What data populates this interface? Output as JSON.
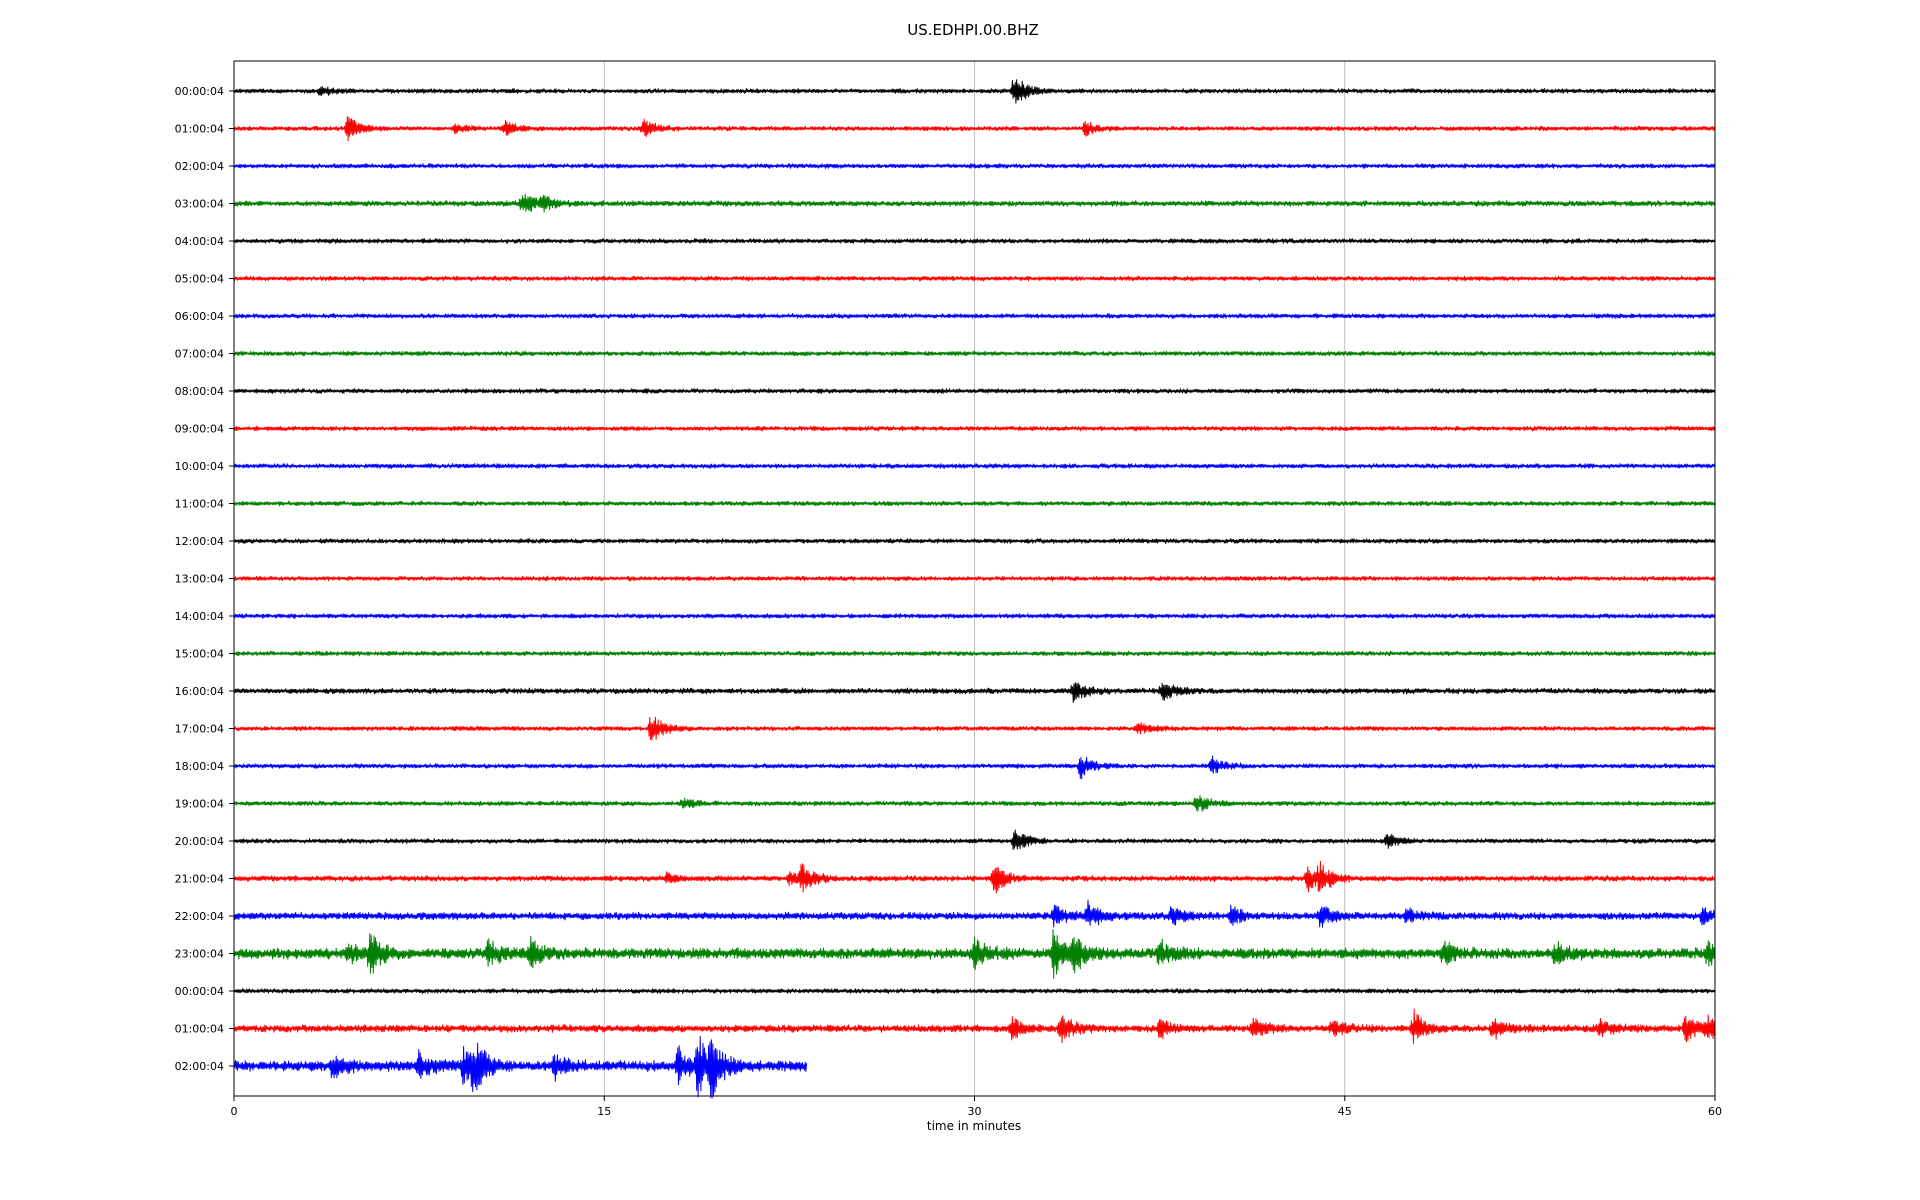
{
  "chart_data": {
    "type": "line",
    "title": "US.EDHPI.00.BHZ",
    "xlabel": "time in minutes",
    "ylabel": "",
    "xlim": [
      0,
      60
    ],
    "x_ticks": [
      "0",
      "15",
      "30",
      "45",
      "60"
    ],
    "x_tick_values": [
      0,
      15,
      30,
      45,
      60
    ],
    "grid": "vertical",
    "line_colors": [
      "#000000",
      "#ff0000",
      "#0000ff",
      "#008000"
    ],
    "series": [
      {
        "label": "00:00:04",
        "color": "#000000",
        "end": 60,
        "noise": 2.5,
        "events": [
          {
            "t": 3.5,
            "amp": 5
          },
          {
            "t": 31.6,
            "amp": 16
          }
        ]
      },
      {
        "label": "01:00:04",
        "color": "#ff0000",
        "end": 60,
        "noise": 2.5,
        "events": [
          {
            "t": 4.6,
            "amp": 12
          },
          {
            "t": 9.0,
            "amp": 4
          },
          {
            "t": 11.0,
            "amp": 7
          },
          {
            "t": 16.6,
            "amp": 9
          },
          {
            "t": 34.5,
            "amp": 7
          }
        ]
      },
      {
        "label": "02:00:04",
        "color": "#0000ff",
        "end": 60,
        "noise": 2.5,
        "events": []
      },
      {
        "label": "03:00:04",
        "color": "#008000",
        "end": 60,
        "noise": 3,
        "events": [
          {
            "t": 11.7,
            "amp": 12
          },
          {
            "t": 12.5,
            "amp": 6
          }
        ]
      },
      {
        "label": "04:00:04",
        "color": "#000000",
        "end": 60,
        "noise": 2.5,
        "events": []
      },
      {
        "label": "05:00:04",
        "color": "#ff0000",
        "end": 60,
        "noise": 2.5,
        "events": []
      },
      {
        "label": "06:00:04",
        "color": "#0000ff",
        "end": 60,
        "noise": 2.5,
        "events": []
      },
      {
        "label": "07:00:04",
        "color": "#008000",
        "end": 60,
        "noise": 2.5,
        "events": []
      },
      {
        "label": "08:00:04",
        "color": "#000000",
        "end": 60,
        "noise": 2.5,
        "events": []
      },
      {
        "label": "09:00:04",
        "color": "#ff0000",
        "end": 60,
        "noise": 2.5,
        "events": []
      },
      {
        "label": "10:00:04",
        "color": "#0000ff",
        "end": 60,
        "noise": 2.5,
        "events": []
      },
      {
        "label": "11:00:04",
        "color": "#008000",
        "end": 60,
        "noise": 2.5,
        "events": []
      },
      {
        "label": "12:00:04",
        "color": "#000000",
        "end": 60,
        "noise": 2.5,
        "events": []
      },
      {
        "label": "13:00:04",
        "color": "#ff0000",
        "end": 60,
        "noise": 2.5,
        "events": []
      },
      {
        "label": "14:00:04",
        "color": "#0000ff",
        "end": 60,
        "noise": 2.5,
        "events": []
      },
      {
        "label": "15:00:04",
        "color": "#008000",
        "end": 60,
        "noise": 2.5,
        "events": []
      },
      {
        "label": "16:00:04",
        "color": "#000000",
        "end": 60,
        "noise": 3,
        "events": [
          {
            "t": 34.0,
            "amp": 11
          },
          {
            "t": 37.6,
            "amp": 9
          }
        ]
      },
      {
        "label": "17:00:04",
        "color": "#ff0000",
        "end": 60,
        "noise": 2.5,
        "events": [
          {
            "t": 16.9,
            "amp": 15
          },
          {
            "t": 36.6,
            "amp": 6
          }
        ]
      },
      {
        "label": "18:00:04",
        "color": "#0000ff",
        "end": 60,
        "noise": 2.5,
        "events": [
          {
            "t": 34.3,
            "amp": 12
          },
          {
            "t": 39.6,
            "amp": 9
          }
        ]
      },
      {
        "label": "19:00:04",
        "color": "#008000",
        "end": 60,
        "noise": 2.5,
        "events": [
          {
            "t": 18.2,
            "amp": 5
          },
          {
            "t": 39.0,
            "amp": 10
          }
        ]
      },
      {
        "label": "20:00:04",
        "color": "#000000",
        "end": 60,
        "noise": 2.5,
        "events": [
          {
            "t": 31.6,
            "amp": 12
          },
          {
            "t": 46.7,
            "amp": 7
          }
        ]
      },
      {
        "label": "21:00:04",
        "color": "#ff0000",
        "end": 60,
        "noise": 3,
        "events": [
          {
            "t": 17.5,
            "amp": 5
          },
          {
            "t": 22.5,
            "amp": 6
          },
          {
            "t": 23.0,
            "amp": 14
          },
          {
            "t": 30.8,
            "amp": 15
          },
          {
            "t": 43.5,
            "amp": 13
          },
          {
            "t": 44.0,
            "amp": 13
          }
        ]
      },
      {
        "label": "22:00:04",
        "color": "#0000ff",
        "end": 60,
        "noise": 4,
        "events": [
          {
            "t": 33.2,
            "amp": 10
          },
          {
            "t": 34.6,
            "amp": 13
          },
          {
            "t": 38.0,
            "amp": 9
          },
          {
            "t": 40.4,
            "amp": 8
          },
          {
            "t": 44.0,
            "amp": 10
          },
          {
            "t": 47.5,
            "amp": 7
          },
          {
            "t": 59.5,
            "amp": 8
          }
        ]
      },
      {
        "label": "23:00:04",
        "color": "#008000",
        "end": 60,
        "noise": 6,
        "events": [
          {
            "t": 4.6,
            "amp": 10
          },
          {
            "t": 5.5,
            "amp": 18
          },
          {
            "t": 10.3,
            "amp": 12
          },
          {
            "t": 12.0,
            "amp": 12
          },
          {
            "t": 30.0,
            "amp": 12
          },
          {
            "t": 33.2,
            "amp": 22
          },
          {
            "t": 34.0,
            "amp": 16
          },
          {
            "t": 37.5,
            "amp": 12
          },
          {
            "t": 49.0,
            "amp": 10
          },
          {
            "t": 53.5,
            "amp": 10
          },
          {
            "t": 59.7,
            "amp": 10
          }
        ]
      },
      {
        "label": "00:00:04",
        "color": "#000000",
        "end": 60,
        "noise": 2.5,
        "events": []
      },
      {
        "label": "01:00:04",
        "color": "#ff0000",
        "end": 60,
        "noise": 4,
        "events": [
          {
            "t": 31.5,
            "amp": 10
          },
          {
            "t": 33.5,
            "amp": 14
          },
          {
            "t": 37.5,
            "amp": 9
          },
          {
            "t": 41.3,
            "amp": 9
          },
          {
            "t": 44.5,
            "amp": 8
          },
          {
            "t": 47.8,
            "amp": 16
          },
          {
            "t": 51.0,
            "amp": 10
          },
          {
            "t": 55.3,
            "amp": 9
          },
          {
            "t": 58.8,
            "amp": 14
          },
          {
            "t": 59.7,
            "amp": 12
          }
        ]
      },
      {
        "label": "02:00:04",
        "color": "#0000ff",
        "end": 23.2,
        "noise": 6,
        "events": [
          {
            "t": 4.0,
            "amp": 10
          },
          {
            "t": 7.5,
            "amp": 12
          },
          {
            "t": 9.3,
            "amp": 16
          },
          {
            "t": 9.7,
            "amp": 22
          },
          {
            "t": 13.0,
            "amp": 10
          },
          {
            "t": 18.0,
            "amp": 18
          },
          {
            "t": 18.8,
            "amp": 28
          },
          {
            "t": 19.3,
            "amp": 25
          }
        ]
      }
    ]
  }
}
